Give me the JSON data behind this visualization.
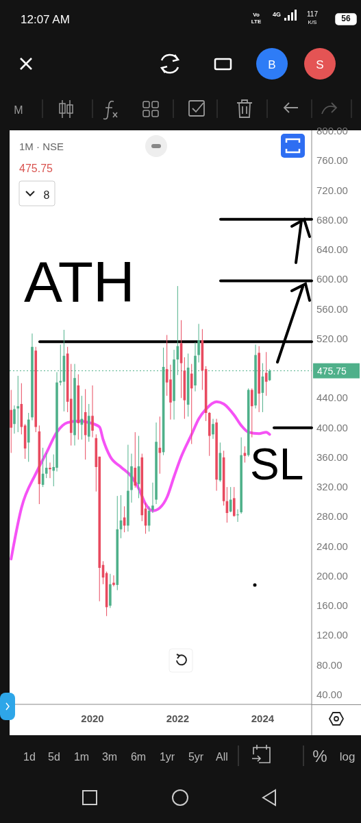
{
  "chart_data": {
    "type": "candlestick",
    "title": "1M · NSE",
    "x": [
      "2018-02",
      "2018-03",
      "2018-04",
      "2018-05",
      "2018-06",
      "2018-07",
      "2018-08",
      "2018-09",
      "2018-10",
      "2018-11",
      "2018-12",
      "2019-01",
      "2019-02",
      "2019-03",
      "2019-04",
      "2019-05",
      "2019-06",
      "2019-07",
      "2019-08",
      "2019-09",
      "2019-10",
      "2019-11",
      "2019-12",
      "2020-01",
      "2020-02",
      "2020-03",
      "2020-04",
      "2020-05",
      "2020-06",
      "2020-07",
      "2020-08",
      "2020-09",
      "2020-10",
      "2020-11",
      "2020-12",
      "2021-01",
      "2021-02",
      "2021-03",
      "2021-04",
      "2021-05",
      "2021-06",
      "2021-07",
      "2021-08",
      "2021-09",
      "2021-10",
      "2021-11",
      "2021-12",
      "2022-01",
      "2022-02",
      "2022-03",
      "2022-04",
      "2022-05",
      "2022-06",
      "2022-07",
      "2022-08",
      "2022-09",
      "2022-10",
      "2022-11",
      "2022-12",
      "2023-01",
      "2023-02",
      "2023-03",
      "2023-04",
      "2023-05",
      "2023-06",
      "2023-07",
      "2023-08",
      "2023-09",
      "2023-10",
      "2023-11",
      "2023-12",
      "2024-01",
      "2024-02",
      "2024-03"
    ],
    "ohlc": [
      [
        423,
        450,
        365,
        399
      ],
      [
        404,
        429,
        391,
        424
      ],
      [
        425,
        469,
        393,
        428
      ],
      [
        431,
        459,
        390,
        400
      ],
      [
        402,
        404,
        357,
        371
      ],
      [
        379,
        419,
        353,
        410
      ],
      [
        413,
        526,
        409,
        508
      ],
      [
        503,
        508,
        393,
        400
      ],
      [
        394,
        402,
        296,
        323
      ],
      [
        322,
        372,
        319,
        337
      ],
      [
        337,
        365,
        331,
        345
      ],
      [
        345,
        352,
        331,
        343
      ],
      [
        341,
        363,
        320,
        346
      ],
      [
        345,
        474,
        340,
        460
      ],
      [
        460,
        511,
        456,
        462
      ],
      [
        461,
        531,
        421,
        496
      ],
      [
        499,
        508,
        420,
        434
      ],
      [
        438,
        485,
        375,
        392
      ],
      [
        389,
        485,
        375,
        466
      ],
      [
        456,
        471,
        383,
        405
      ],
      [
        403,
        442,
        383,
        411
      ],
      [
        420,
        451,
        356,
        389
      ],
      [
        387,
        431,
        380,
        415
      ],
      [
        415,
        456,
        386,
        395
      ],
      [
        385,
        390,
        313,
        346
      ],
      [
        360,
        360,
        165,
        210
      ],
      [
        214,
        219,
        188,
        197
      ],
      [
        203,
        205,
        145,
        157
      ],
      [
        159,
        202,
        156,
        188
      ],
      [
        190,
        200,
        185,
        187
      ],
      [
        187,
        307,
        180,
        262
      ],
      [
        262,
        308,
        250,
        274
      ],
      [
        278,
        293,
        258,
        267
      ],
      [
        267,
        376,
        259,
        314
      ],
      [
        315,
        364,
        298,
        347
      ],
      [
        345,
        393,
        318,
        321
      ],
      [
        323,
        388,
        304,
        347
      ],
      [
        359,
        364,
        273,
        281
      ],
      [
        290,
        298,
        256,
        267
      ],
      [
        267,
        293,
        259,
        287
      ],
      [
        288,
        325,
        284,
        294
      ],
      [
        302,
        406,
        296,
        380
      ],
      [
        372,
        414,
        337,
        365
      ],
      [
        366,
        507,
        362,
        481
      ],
      [
        478,
        524,
        442,
        460
      ],
      [
        464,
        484,
        410,
        433
      ],
      [
        435,
        504,
        410,
        491
      ],
      [
        491,
        590,
        470,
        509
      ],
      [
        513,
        544,
        439,
        486
      ],
      [
        476,
        494,
        411,
        436
      ],
      [
        430,
        499,
        414,
        480
      ],
      [
        472,
        485,
        377,
        452
      ],
      [
        456,
        514,
        448,
        496
      ],
      [
        497,
        539,
        487,
        517
      ],
      [
        517,
        532,
        450,
        476
      ],
      [
        478,
        482,
        408,
        419
      ],
      [
        419,
        420,
        361,
        388
      ],
      [
        390,
        411,
        384,
        404
      ],
      [
        406,
        411,
        314,
        329
      ],
      [
        328,
        379,
        326,
        365
      ],
      [
        359,
        368,
        294,
        300
      ],
      [
        300,
        319,
        271,
        284
      ],
      [
        286,
        319,
        285,
        302
      ],
      [
        304,
        319,
        279,
        280
      ],
      [
        281,
        289,
        272,
        282
      ],
      [
        285,
        386,
        283,
        362
      ],
      [
        365,
        374,
        352,
        361
      ],
      [
        362,
        452,
        360,
        450
      ],
      [
        450,
        452,
        386,
        428
      ],
      [
        429,
        511,
        425,
        497
      ],
      [
        500,
        509,
        420,
        445
      ],
      [
        446,
        486,
        420,
        468
      ],
      [
        473,
        501,
        442,
        461
      ],
      [
        463,
        478,
        462,
        475.75
      ]
    ],
    "colors": [
      "#e84a5f",
      "#4fb08a",
      "#4fb08a",
      "#e84a5f",
      "#e84a5f",
      "#4fb08a",
      "#4fb08a",
      "#e84a5f",
      "#e84a5f",
      "#4fb08a",
      "#4fb08a",
      "#e84a5f",
      "#4fb08a",
      "#4fb08a",
      "#4fb08a",
      "#4fb08a",
      "#e84a5f",
      "#e84a5f",
      "#4fb08a",
      "#e84a5f",
      "#4fb08a",
      "#e84a5f",
      "#4fb08a",
      "#e84a5f",
      "#e84a5f",
      "#e84a5f",
      "#e84a5f",
      "#e84a5f",
      "#4fb08a",
      "#e84a5f",
      "#4fb08a",
      "#4fb08a",
      "#e84a5f",
      "#4fb08a",
      "#4fb08a",
      "#e84a5f",
      "#4fb08a",
      "#e84a5f",
      "#e84a5f",
      "#4fb08a",
      "#4fb08a",
      "#4fb08a",
      "#e84a5f",
      "#4fb08a",
      "#e84a5f",
      "#e84a5f",
      "#4fb08a",
      "#4fb08a",
      "#e84a5f",
      "#e84a5f",
      "#4fb08a",
      "#e84a5f",
      "#4fb08a",
      "#4fb08a",
      "#e84a5f",
      "#e84a5f",
      "#e84a5f",
      "#4fb08a",
      "#e84a5f",
      "#4fb08a",
      "#e84a5f",
      "#e84a5f",
      "#4fb08a",
      "#e84a5f",
      "#4fb08a",
      "#4fb08a",
      "#e84a5f",
      "#4fb08a",
      "#e84a5f",
      "#4fb08a",
      "#e84a5f",
      "#4fb08a",
      "#e84a5f",
      "#4fb08a"
    ],
    "series": [
      {
        "type": "line",
        "color": "#f552f5",
        "x": [
          "2018-02",
          "2018-05",
          "2018-09",
          "2018-12",
          "2019-03",
          "2019-06",
          "2019-09",
          "2019-12",
          "2020-03",
          "2020-04",
          "2020-06",
          "2020-09",
          "2020-12",
          "2021-02",
          "2021-04",
          "2021-06",
          "2021-08",
          "2021-10",
          "2021-12",
          "2022-02",
          "2022-05",
          "2022-07",
          "2022-09",
          "2022-12",
          "2023-02",
          "2023-05",
          "2023-07",
          "2023-09",
          "2023-12",
          "2024-02",
          "2024-03"
        ],
        "values": [
          222,
          291,
          337,
          365,
          393,
          406,
          408,
          406,
          400,
          383,
          360,
          346,
          333,
          317,
          296,
          287,
          291,
          305,
          333,
          360,
          390,
          411,
          424,
          434,
          431,
          416,
          402,
          393,
          391,
          393,
          390
        ]
      }
    ],
    "xlim": [
      "2018-01-19",
      "2025-02-25"
    ],
    "xticks": [
      {
        "value": "2020-01",
        "label": "2020"
      },
      {
        "value": "2022-01",
        "label": "2022"
      },
      {
        "value": "2024-01",
        "label": "2024"
      }
    ],
    "ylim": [
      26,
      800
    ],
    "yticks": [
      {
        "value": 40,
        "label": "40.00"
      },
      {
        "value": 80,
        "label": "80.00"
      },
      {
        "value": 120,
        "label": "120.00"
      },
      {
        "value": 160,
        "label": "160.00"
      },
      {
        "value": 200,
        "label": "200.00"
      },
      {
        "value": 240,
        "label": "240.00"
      },
      {
        "value": 280,
        "label": "280.00"
      },
      {
        "value": 320,
        "label": "320.00"
      },
      {
        "value": 360,
        "label": "360.00"
      },
      {
        "value": 400,
        "label": "400.00"
      },
      {
        "value": 440,
        "label": "440.00"
      },
      {
        "value": 520,
        "label": "520.00"
      },
      {
        "value": 560,
        "label": "560.00"
      },
      {
        "value": 600,
        "label": "600.00"
      },
      {
        "value": 640,
        "label": "640.00"
      },
      {
        "value": 680,
        "label": "680.00"
      },
      {
        "value": 720,
        "label": "720.00"
      },
      {
        "value": 760,
        "label": "760.00"
      },
      {
        "value": 800,
        "label": "800.00"
      }
    ],
    "ref_lines": [
      {
        "axis": "y",
        "value": 475.75,
        "label": "475.75",
        "color": "#4fb08a",
        "line_style": "dotted"
      },
      {
        "axis": "y",
        "value": 515,
        "label": "ATH",
        "color": "#000000",
        "line_style": "solid"
      },
      {
        "axis": "y",
        "value": 680,
        "color": "#000000",
        "line_style": "solid"
      },
      {
        "axis": "y",
        "value": 597,
        "color": "#000000",
        "line_style": "solid"
      },
      {
        "axis": "y",
        "value": 399,
        "label": "SL",
        "color": "#000000",
        "line_style": "solid"
      }
    ],
    "annotations": [
      "475.75",
      "8",
      "12:07 AM",
      "Vo",
      "LTE",
      "4G",
      "117",
      "K/S",
      "56",
      "M",
      "B",
      "S",
      "1d",
      "5d",
      "1m",
      "3m",
      "6m",
      "1yr",
      "5yr",
      "All",
      "%",
      "log"
    ]
  }
}
